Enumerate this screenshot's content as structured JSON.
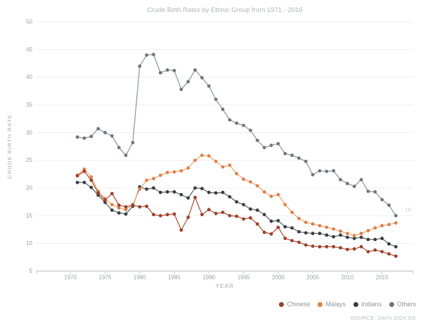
{
  "title": "Crude Birth Rates by Ethnic Group from 1971 - 2016",
  "source": "SOURCE: DATA.GOV.SG",
  "chart_data": {
    "type": "line",
    "title": "Crude Birth Rates by Ethnic Group from 1971 - 2016",
    "xlabel": "YEAR",
    "ylabel": "CRUDE BIRTH RATE",
    "x_ticks": [
      1970,
      1975,
      1980,
      1985,
      1990,
      1995,
      2000,
      2005,
      2010,
      2015
    ],
    "y_ticks": [
      5,
      10,
      15,
      20,
      25,
      30,
      35,
      40,
      45,
      50
    ],
    "xlim": [
      1965.1,
      2019.5
    ],
    "ylim": [
      5,
      50
    ],
    "grid": "horizontal",
    "legend_position": "bottom-right",
    "years": [
      1971,
      1972,
      1973,
      1974,
      1975,
      1976,
      1977,
      1978,
      1979,
      1980,
      1981,
      1982,
      1983,
      1984,
      1985,
      1986,
      1987,
      1988,
      1989,
      1990,
      1991,
      1992,
      1993,
      1994,
      1995,
      1996,
      1997,
      1998,
      1999,
      2000,
      2001,
      2002,
      2003,
      2004,
      2005,
      2006,
      2007,
      2008,
      2009,
      2010,
      2011,
      2012,
      2013,
      2014,
      2015,
      2016,
      2017
    ],
    "series": [
      {
        "name": "Chinese",
        "line_color": "#b5573e",
        "marker_color": "#9c402c",
        "values": [
          22.2,
          23.0,
          21.4,
          19.1,
          17.8,
          19.0,
          16.9,
          16.6,
          16.9,
          16.6,
          16.7,
          15.2,
          15.0,
          15.2,
          15.3,
          12.4,
          14.7,
          18.3,
          15.2,
          16.1,
          15.4,
          15.6,
          15.0,
          14.9,
          14.4,
          14.6,
          13.5,
          12.0,
          11.7,
          12.9,
          10.9,
          10.5,
          10.2,
          9.7,
          9.5,
          9.4,
          9.4,
          9.4,
          9.2,
          8.9,
          9.0,
          9.4,
          8.5,
          8.8,
          8.5,
          8.1,
          7.7
        ]
      },
      {
        "name": "Malays",
        "line_color": "#f2a878",
        "marker_color": "#de8148",
        "values": [
          22.3,
          23.4,
          22.0,
          19.4,
          18.1,
          17.0,
          16.4,
          16.1,
          17.0,
          19.8,
          21.4,
          21.7,
          22.3,
          22.8,
          22.9,
          23.1,
          23.6,
          25.0,
          25.9,
          25.8,
          24.8,
          23.8,
          24.1,
          22.6,
          21.6,
          21.1,
          20.4,
          19.3,
          18.5,
          18.8,
          17.0,
          15.6,
          14.5,
          13.8,
          13.5,
          13.2,
          12.9,
          12.6,
          12.2,
          11.8,
          11.4,
          11.8,
          12.3,
          12.8,
          13.2,
          13.4,
          13.7
        ]
      },
      {
        "name": "Indians",
        "line_color": "#63696c",
        "marker_color": "#393e41",
        "values": [
          21.0,
          21.0,
          20.1,
          18.7,
          17.4,
          16.0,
          15.5,
          15.3,
          16.7,
          20.2,
          19.8,
          20.0,
          19.2,
          19.3,
          19.3,
          18.8,
          18.2,
          20.0,
          19.9,
          19.2,
          19.1,
          19.2,
          18.4,
          17.5,
          17.0,
          16.2,
          16.0,
          15.2,
          14.0,
          14.1,
          13.0,
          12.8,
          12.1,
          11.9,
          11.8,
          11.8,
          11.5,
          11.2,
          11.5,
          11.1,
          10.9,
          11.1,
          10.7,
          10.7,
          10.9,
          9.9,
          9.4
        ]
      },
      {
        "name": "Others",
        "line_color": "#929ba0",
        "marker_color": "#6d767b",
        "values": [
          29.2,
          29.0,
          29.3,
          30.7,
          30.0,
          29.4,
          27.3,
          25.9,
          28.2,
          42.0,
          44.0,
          44.1,
          40.8,
          41.3,
          41.2,
          37.8,
          39.2,
          41.3,
          39.9,
          38.4,
          36.0,
          34.2,
          32.3,
          31.7,
          31.3,
          30.4,
          28.6,
          27.3,
          27.7,
          28.0,
          26.2,
          25.9,
          25.4,
          24.8,
          22.4,
          23.1,
          23.0,
          23.1,
          21.5,
          20.8,
          20.3,
          21.5,
          19.4,
          19.3,
          17.9,
          16.9,
          15.0
        ]
      }
    ],
    "end_annotation": {
      "text": "15",
      "series": "Others"
    }
  },
  "colors": {
    "title_text": "#b2b6b8",
    "tick_text": "#9b9fa2",
    "axis_label_text": "#a3a8aa",
    "gridline": "#efeff0",
    "axis_line": "#b3b8ba",
    "tick_mark": "#c3c7c9",
    "annotation_text": "#c6cacc"
  }
}
